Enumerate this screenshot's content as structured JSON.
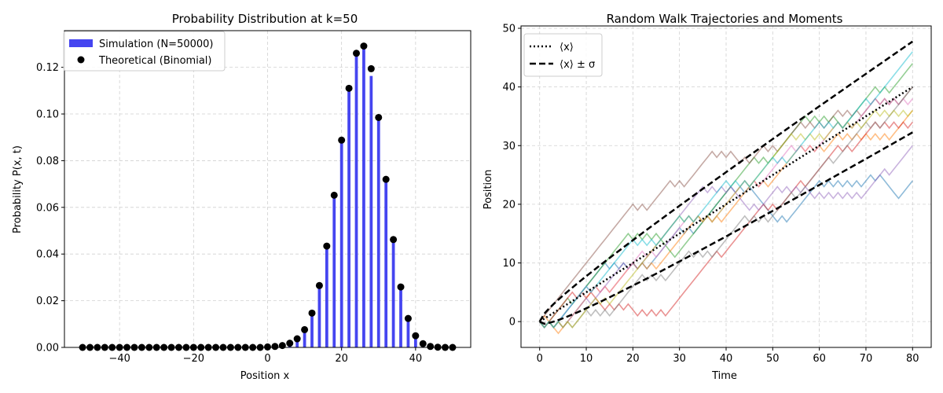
{
  "chart_data": [
    {
      "type": "bar",
      "title": "Probability Distribution at k=50",
      "xlabel": "Position x",
      "ylabel": "Probability P(x, t)",
      "xlim": [
        -54.9,
        54.9
      ],
      "ylim": [
        0,
        0.1357
      ],
      "xticks": [
        -40,
        -20,
        0,
        20,
        40
      ],
      "xtick_labels": [
        "−40",
        "−20",
        "0",
        "20",
        "40"
      ],
      "yticks": [
        0,
        0.02,
        0.04,
        0.06,
        0.08,
        0.1,
        0.12
      ],
      "ytick_labels": [
        "0.00",
        "0.02",
        "0.04",
        "0.06",
        "0.08",
        "0.10",
        "0.12"
      ],
      "grid": true,
      "legend_position": "upper-left",
      "colors": {
        "bars": "#4545f0",
        "points": "#000000"
      },
      "series": [
        {
          "name": "Simulation (N=50000)",
          "kind": "bar",
          "x": [
            -50,
            -48,
            -46,
            -44,
            -42,
            -40,
            -38,
            -36,
            -34,
            -32,
            -30,
            -28,
            -26,
            -24,
            -22,
            -20,
            -18,
            -16,
            -14,
            -12,
            -10,
            -8,
            -6,
            -4,
            -2,
            0,
            2,
            4,
            6,
            8,
            10,
            12,
            14,
            16,
            18,
            20,
            22,
            24,
            26,
            28,
            30,
            32,
            34,
            36,
            38,
            40,
            42,
            44,
            46,
            48,
            50
          ],
          "values": [
            0,
            0,
            0,
            0,
            0,
            0,
            0,
            0,
            0,
            0,
            0,
            0,
            0,
            0,
            0,
            0,
            0,
            0,
            0,
            0,
            0,
            0,
            0,
            0,
            0,
            0.0001,
            0.0003,
            0.0007,
            0.0017,
            0.0037,
            0.0076,
            0.0145,
            0.0262,
            0.043,
            0.065,
            0.089,
            0.1115,
            0.1265,
            0.129,
            0.1163,
            0.099,
            0.0722,
            0.0462,
            0.0254,
            0.0122,
            0.0051,
            0.0018,
            0.0005,
            0.0001,
            0,
            0
          ]
        },
        {
          "name": "Theoretical (Binomial)",
          "kind": "scatter",
          "x": [
            -50,
            -48,
            -46,
            -44,
            -42,
            -40,
            -38,
            -36,
            -34,
            -32,
            -30,
            -28,
            -26,
            -24,
            -22,
            -20,
            -18,
            -16,
            -14,
            -12,
            -10,
            -8,
            -6,
            -4,
            -2,
            0,
            2,
            4,
            6,
            8,
            10,
            12,
            14,
            16,
            18,
            20,
            22,
            24,
            26,
            28,
            30,
            32,
            34,
            36,
            38,
            40,
            42,
            44,
            46,
            48,
            50
          ],
          "values": [
            0,
            0,
            0,
            0,
            0,
            0,
            0,
            0,
            0,
            0,
            0,
            0,
            0,
            0,
            0,
            0,
            0,
            0,
            0,
            0,
            0,
            0,
            0,
            0,
            0,
            0.0002,
            0.0004,
            0.0008,
            0.0018,
            0.0037,
            0.0076,
            0.0147,
            0.0265,
            0.0434,
            0.0652,
            0.0888,
            0.111,
            0.126,
            0.1291,
            0.1194,
            0.0985,
            0.072,
            0.0462,
            0.0259,
            0.0124,
            0.005,
            0.0016,
            0.0004,
            0.0001,
            0,
            0
          ]
        }
      ]
    },
    {
      "type": "line",
      "title": "Random Walk Trajectories and Moments",
      "xlabel": "Time",
      "ylabel": "Position",
      "xlim": [
        -4,
        84
      ],
      "ylim": [
        -4.4,
        50.4
      ],
      "xticks": [
        0,
        10,
        20,
        30,
        40,
        50,
        60,
        70,
        80
      ],
      "yticks": [
        0,
        10,
        20,
        30,
        40,
        50
      ],
      "grid": true,
      "legend_position": "upper-left",
      "legend": [
        {
          "label": "⟨x⟩",
          "style": "dotted"
        },
        {
          "label": "⟨x⟩ ± σ",
          "style": "dashed"
        }
      ],
      "moments": {
        "t": [
          0,
          80
        ],
        "mean": [
          0,
          40
        ],
        "mean_slope": 0.5,
        "sigma_factor": 0.866
      },
      "trajectories": [
        {
          "color": "#1f77b4",
          "points": [
            [
              0,
              0
            ],
            [
              10,
              7
            ],
            [
              14,
              12
            ],
            [
              20,
              10
            ],
            [
              30,
              16
            ],
            [
              40,
              22
            ],
            [
              50,
              18
            ],
            [
              60,
              24
            ],
            [
              70,
              24
            ],
            [
              76,
              21
            ],
            [
              80,
              24
            ]
          ]
        },
        {
          "color": "#ff7f0e",
          "points": [
            [
              0,
              0
            ],
            [
              4,
              -2
            ],
            [
              12,
              6
            ],
            [
              20,
              10
            ],
            [
              34,
              18
            ],
            [
              46,
              24
            ],
            [
              56,
              31
            ],
            [
              64,
              33
            ],
            [
              70,
              33
            ],
            [
              80,
              36
            ]
          ]
        },
        {
          "color": "#2ca02c",
          "points": [
            [
              0,
              0
            ],
            [
              6,
              4
            ],
            [
              18,
              15
            ],
            [
              28,
              12
            ],
            [
              38,
              21
            ],
            [
              46,
              29
            ],
            [
              56,
              35
            ],
            [
              64,
              33
            ],
            [
              72,
              40
            ],
            [
              80,
              44
            ]
          ]
        },
        {
          "color": "#d62728",
          "points": [
            [
              0,
              0
            ],
            [
              6,
              4
            ],
            [
              14,
              2
            ],
            [
              20,
              1
            ],
            [
              32,
              6
            ],
            [
              38,
              12
            ],
            [
              48,
              20
            ],
            [
              56,
              25
            ],
            [
              64,
              30
            ],
            [
              72,
              34
            ],
            [
              80,
              34
            ]
          ]
        },
        {
          "color": "#9467bd",
          "points": [
            [
              0,
              0
            ],
            [
              10,
              5
            ],
            [
              18,
              11
            ],
            [
              26,
              14
            ],
            [
              34,
              22
            ],
            [
              44,
              20
            ],
            [
              50,
              22
            ],
            [
              58,
              21
            ],
            [
              64,
              23
            ],
            [
              74,
              27
            ],
            [
              80,
              30
            ]
          ]
        },
        {
          "color": "#8c564b",
          "points": [
            [
              0,
              0
            ],
            [
              20,
              20
            ],
            [
              28,
              24
            ],
            [
              36,
              28
            ],
            [
              42,
              27
            ],
            [
              48,
              31
            ],
            [
              56,
              35
            ],
            [
              64,
              37
            ],
            [
              72,
              39
            ],
            [
              80,
              40
            ]
          ]
        },
        {
          "color": "#e377c2",
          "points": [
            [
              0,
              0
            ],
            [
              10,
              6
            ],
            [
              22,
              12
            ],
            [
              32,
              18
            ],
            [
              44,
              25
            ],
            [
              54,
              30
            ],
            [
              64,
              34
            ],
            [
              72,
              38
            ],
            [
              80,
              38
            ]
          ]
        },
        {
          "color": "#7f7f7f",
          "points": [
            [
              0,
              0
            ],
            [
              10,
              3
            ],
            [
              22,
              9
            ],
            [
              32,
              12
            ],
            [
              44,
              19
            ],
            [
              54,
              22
            ],
            [
              62,
              28
            ],
            [
              70,
              34
            ],
            [
              80,
              40
            ]
          ]
        },
        {
          "color": "#bcbd22",
          "points": [
            [
              0,
              0
            ],
            [
              12,
              5
            ],
            [
              22,
              10
            ],
            [
              30,
              18
            ],
            [
              44,
              24
            ],
            [
              54,
              32
            ],
            [
              64,
              34
            ],
            [
              72,
              37
            ],
            [
              80,
              36
            ]
          ]
        },
        {
          "color": "#17becf",
          "points": [
            [
              0,
              0
            ],
            [
              10,
              6
            ],
            [
              20,
              14
            ],
            [
              30,
              18
            ],
            [
              40,
              24
            ],
            [
              50,
              28
            ],
            [
              60,
              35
            ],
            [
              70,
              38
            ],
            [
              80,
              46
            ]
          ]
        }
      ]
    }
  ]
}
